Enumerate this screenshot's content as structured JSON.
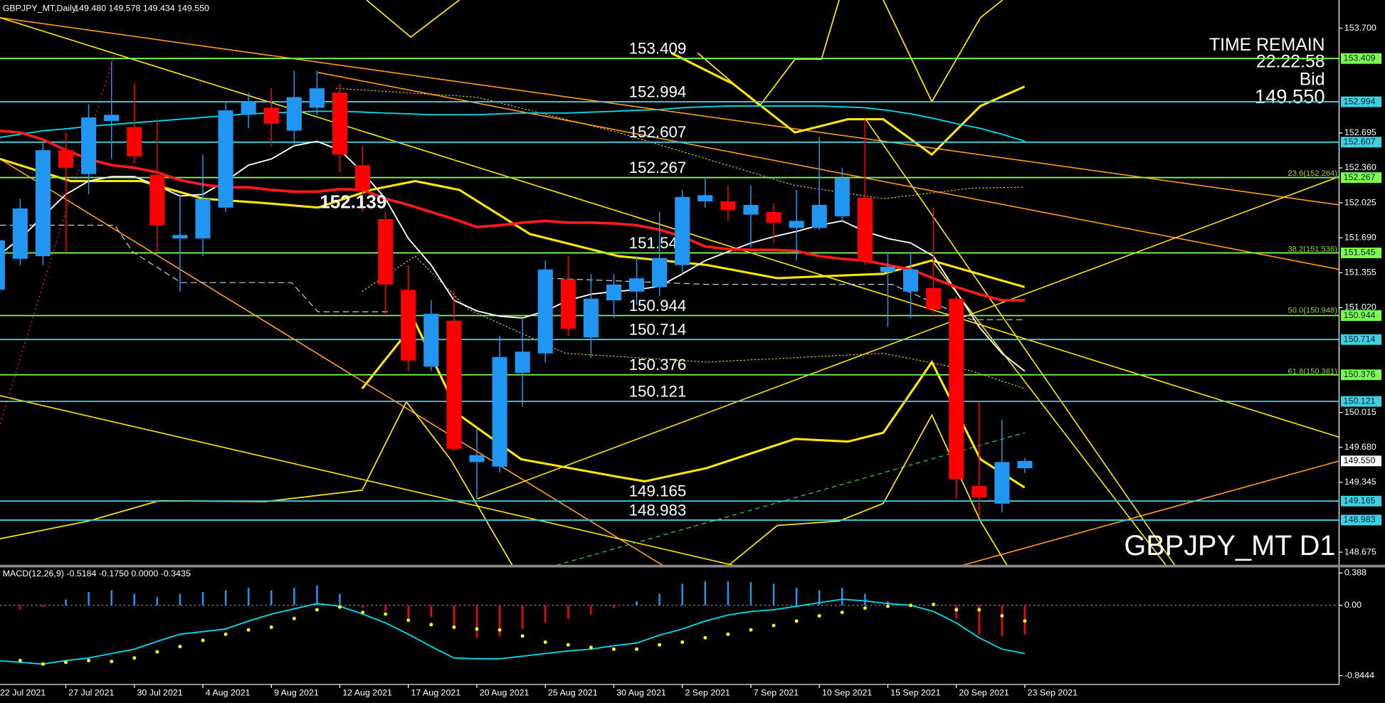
{
  "chart_data": {
    "type": "candlestick",
    "title": "GBPJPY_MT,Daily",
    "ohlc_header": "149.480 149.578 149.434 149.550",
    "watermark": "GBPJPY_MT D1",
    "time_remain_caption": "TIME REMAIN",
    "time_remain": "22:22:58",
    "bid_caption": "Bid",
    "bid": {
      "value": 149.55,
      "label": "149.550"
    },
    "marker_price": 152.139,
    "up_color": "#2196f3",
    "down_color": "#ff0000",
    "ylim": [
      148.55,
      153.97
    ],
    "yticks": [
      {
        "value": 153.7,
        "label": "153.700"
      },
      152.695,
      {
        "value": 152.36,
        "label": "152.360"
      },
      152.025,
      {
        "value": 151.69,
        "label": "151.690"
      },
      151.355,
      {
        "value": 151.02,
        "label": "151.020"
      },
      150.015,
      {
        "value": 149.68,
        "label": "149.680"
      },
      149.345,
      148.675
    ],
    "categories": [
      "22 Jul 2021",
      null,
      null,
      "27 Jul 2021",
      null,
      null,
      "30 Jul 2021",
      null,
      null,
      "4 Aug 2021",
      null,
      null,
      "9 Aug 2021",
      null,
      null,
      "12 Aug 2021",
      null,
      null,
      "17 Aug 2021",
      null,
      null,
      "20 Aug 2021",
      null,
      null,
      "25 Aug 2021",
      null,
      null,
      "30 Aug 2021",
      null,
      null,
      "2 Sep 2021",
      null,
      null,
      "7 Sep 2021",
      null,
      null,
      "10 Sep 2021",
      null,
      null,
      "15 Sep 2021",
      null,
      null,
      "20 Sep 2021",
      null,
      null,
      "23 Sep 2021"
    ],
    "ohlc": [
      [
        151.191,
        151.725,
        151.132,
        151.666
      ],
      [
        151.488,
        152.064,
        151.428,
        151.971
      ],
      [
        151.513,
        152.615,
        151.428,
        152.53
      ],
      [
        152.53,
        152.7,
        151.556,
        152.361
      ],
      [
        152.301,
        152.971,
        152.106,
        152.844
      ],
      [
        152.81,
        153.378,
        152.446,
        152.869
      ],
      [
        152.751,
        153.166,
        152.403,
        152.471
      ],
      [
        152.293,
        152.827,
        151.556,
        151.81
      ],
      [
        151.683,
        152.106,
        151.174,
        151.717
      ],
      [
        151.683,
        152.488,
        151.513,
        152.064
      ],
      [
        151.979,
        152.996,
        151.937,
        152.912
      ],
      [
        152.869,
        153.081,
        152.742,
        152.996
      ],
      [
        152.937,
        153.123,
        152.573,
        152.784
      ],
      [
        152.717,
        153.293,
        152.573,
        153.039
      ],
      [
        152.937,
        153.293,
        152.869,
        153.123
      ],
      [
        153.081,
        153.166,
        152.318,
        152.488
      ],
      [
        152.386,
        152.573,
        151.937,
        152.149
      ],
      [
        151.869,
        151.937,
        150.962,
        151.242
      ],
      [
        151.191,
        151.428,
        150.411,
        150.513
      ],
      [
        150.454,
        151.09,
        150.411,
        150.962
      ],
      [
        150.895,
        151.174,
        149.649,
        149.666
      ],
      [
        149.539,
        149.861,
        149.183,
        149.606
      ],
      [
        149.496,
        150.75,
        149.437,
        150.547
      ],
      [
        150.395,
        150.92,
        150.072,
        150.598
      ],
      [
        150.581,
        151.471,
        150.496,
        151.386
      ],
      [
        151.293,
        151.513,
        150.75,
        150.818
      ],
      [
        150.734,
        151.344,
        150.539,
        151.106
      ],
      [
        151.09,
        151.344,
        150.92,
        151.242
      ],
      [
        151.174,
        151.513,
        151.047,
        151.301
      ],
      [
        151.217,
        151.937,
        151.132,
        151.496
      ],
      [
        151.428,
        152.149,
        151.344,
        152.081
      ],
      [
        152.039,
        152.276,
        151.979,
        152.098
      ],
      [
        152.039,
        152.191,
        151.852,
        151.954
      ],
      [
        151.912,
        152.191,
        151.598,
        152.005
      ],
      [
        151.937,
        152.022,
        151.64,
        151.835
      ],
      [
        151.784,
        152.149,
        151.471,
        151.852
      ],
      [
        151.784,
        152.657,
        151.767,
        152.005
      ],
      [
        151.895,
        152.361,
        151.852,
        152.259
      ],
      [
        152.073,
        152.827,
        151.428,
        151.471
      ],
      [
        151.361,
        151.556,
        150.835,
        151.412
      ],
      [
        151.174,
        151.556,
        150.92,
        151.386
      ],
      [
        151.208,
        151.979,
        150.962,
        151.005
      ],
      [
        151.106,
        151.132,
        149.183,
        149.378
      ],
      [
        149.31,
        150.115,
        149.013,
        149.2
      ],
      [
        149.14,
        149.945,
        149.056,
        149.539
      ],
      [
        149.48,
        149.578,
        149.434,
        149.55
      ]
    ],
    "moving_averages": [
      {
        "color": "#00d8e8",
        "values": [
          152.649,
          152.683,
          152.717,
          152.734,
          152.759,
          152.776,
          152.793,
          152.81,
          152.827,
          152.844,
          152.861,
          152.878,
          152.886,
          152.895,
          152.903,
          152.903,
          152.895,
          152.886,
          152.878,
          152.869,
          152.869,
          152.869,
          152.878,
          152.886,
          152.886,
          152.886,
          152.895,
          152.903,
          152.912,
          152.92,
          152.937,
          152.946,
          152.954,
          152.954,
          152.954,
          152.954,
          152.954,
          152.946,
          152.937,
          152.912,
          152.878,
          152.835,
          152.784,
          152.742,
          152.683,
          152.615
        ]
      },
      {
        "color": "#ffffff",
        "values": [
          151.513,
          151.683,
          151.895,
          152.106,
          152.234,
          152.276,
          152.276,
          152.191,
          152.09,
          152.106,
          152.234,
          152.386,
          152.446,
          152.573,
          152.615,
          152.53,
          152.318,
          152.064,
          151.683,
          151.428,
          151.09,
          150.988,
          150.937,
          150.92,
          150.988,
          151.09,
          151.149,
          151.174,
          151.191,
          151.225,
          151.344,
          151.471,
          151.556,
          151.64,
          151.7,
          151.751,
          151.81,
          151.852,
          151.751,
          151.683,
          151.64,
          151.513,
          151.174,
          150.835,
          150.581,
          150.411
        ]
      },
      {
        "color": "#ff1a1a",
        "values": [
          152.717,
          152.7,
          152.632,
          152.53,
          152.446,
          152.386,
          152.361,
          152.318,
          152.242,
          152.2,
          152.174,
          152.174,
          152.149,
          152.132,
          152.132,
          152.157,
          152.149,
          152.064,
          152.005,
          151.937,
          151.869,
          151.793,
          151.81,
          151.835,
          151.852,
          151.835,
          151.835,
          151.827,
          151.81,
          151.767,
          151.7,
          151.606,
          151.581,
          151.573,
          151.573,
          151.564,
          151.513,
          151.488,
          151.471,
          151.428,
          151.386,
          151.301,
          151.217,
          151.149,
          151.09,
          151.09
        ]
      }
    ],
    "levels": [
      {
        "value": 153.409,
        "color": "#7cfc4c"
      },
      {
        "value": 152.994,
        "color": "#3fd0e0"
      },
      {
        "value": 152.607,
        "color": "#3fd0e0"
      },
      {
        "value": 152.267,
        "color": "#7cfc4c"
      },
      {
        "value": 151.545,
        "color": "#7cfc4c"
      },
      {
        "value": 150.944,
        "color": "#7cfc4c"
      },
      {
        "value": 150.714,
        "color": "#3fd0e0"
      },
      {
        "value": 150.376,
        "color": "#7cfc4c"
      },
      {
        "value": 150.121,
        "color": "#3fd0e0"
      },
      {
        "value": 149.165,
        "color": "#3fd0e0"
      },
      {
        "value": 148.983,
        "color": "#3fd0e0"
      }
    ],
    "fibo_color": "#9acd32",
    "fibo": [
      {
        "value": 152.264,
        "label": "23.6(152.264)"
      },
      {
        "value": 151.536,
        "label": "38.2(151.536)"
      },
      {
        "value": 150.948,
        "label": "50.0(150.948)"
      },
      {
        "value": 150.361,
        "label": "61.8(150.361)"
      }
    ],
    "macd": {
      "label": "MACD(12,26,9) -0.5184 -0.1750 0.0000 -0.3435",
      "ylim": [
        -0.95,
        0.45
      ],
      "yticks": [
        0.388,
        {
          "value": 0,
          "label": "0.00"
        },
        -0.8444
      ],
      "up_color": "#2196f3",
      "down_color": "#ff0000",
      "line_color": "#00d8e8",
      "signal_color": "#ffff00",
      "histogram": [
        -0.04,
        -0.05,
        -0.02,
        0.07,
        0.16,
        0.18,
        0.14,
        0.1,
        0.14,
        0.16,
        0.18,
        0.21,
        0.18,
        0.21,
        0.24,
        0.14,
        -0.03,
        -0.07,
        -0.16,
        -0.14,
        -0.28,
        -0.39,
        -0.37,
        -0.28,
        -0.21,
        -0.16,
        -0.11,
        -0.03,
        0.05,
        0.14,
        0.26,
        0.29,
        0.29,
        0.28,
        0.26,
        0.21,
        0.18,
        0.21,
        0.14,
        0.05,
        0.01,
        0.02,
        -0.16,
        -0.35,
        -0.37,
        -0.35
      ],
      "line": [
        -0.663,
        -0.684,
        -0.705,
        -0.663,
        -0.632,
        -0.579,
        -0.526,
        -0.432,
        -0.347,
        -0.316,
        -0.284,
        -0.189,
        -0.105,
        -0.042,
        0.021,
        -0.011,
        -0.105,
        -0.211,
        -0.347,
        -0.495,
        -0.632,
        -0.642,
        -0.642,
        -0.611,
        -0.579,
        -0.547,
        -0.526,
        -0.484,
        -0.453,
        -0.358,
        -0.284,
        -0.189,
        -0.116,
        -0.074,
        -0.053,
        -0.011,
        0.032,
        0.074,
        0.053,
        0.021,
        0,
        -0.074,
        -0.211,
        -0.389,
        -0.526,
        -0.579
      ],
      "signal": [
        -0.642,
        -0.663,
        -0.705,
        -0.684,
        -0.663,
        -0.674,
        -0.632,
        -0.558,
        -0.495,
        -0.421,
        -0.347,
        -0.295,
        -0.263,
        -0.158,
        -0.053,
        -0.021,
        -0.084,
        -0.105,
        -0.179,
        -0.232,
        -0.263,
        -0.284,
        -0.295,
        -0.368,
        -0.442,
        -0.474,
        -0.505,
        -0.526,
        -0.526,
        -0.474,
        -0.442,
        -0.389,
        -0.347,
        -0.295,
        -0.242,
        -0.189,
        -0.126,
        -0.084,
        -0.032,
        -0.011,
        0,
        0.011,
        -0.053,
        -0.053,
        -0.126,
        -0.189
      ]
    }
  }
}
